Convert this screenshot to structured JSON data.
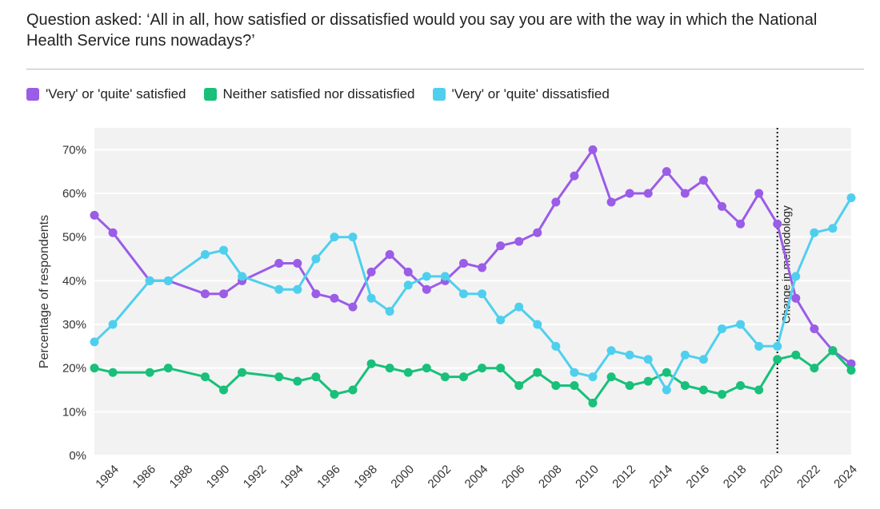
{
  "question": "Question asked: ‘All in all, how satisfied or dissatisfied would you say you are with the way in which the National Health Service runs nowadays?’",
  "chart_data": {
    "type": "line",
    "title": "Question asked: ‘All in all, how satisfied or dissatisfied would you say you are with the way in which the National Health Service runs nowadays?’",
    "xlabel": "",
    "ylabel": "Percentage of respondents",
    "xlim": [
      1983,
      2024
    ],
    "ylim": [
      0,
      75
    ],
    "yticks": [
      0,
      10,
      20,
      30,
      40,
      50,
      60,
      70
    ],
    "ytick_labels": [
      "0%",
      "10%",
      "20%",
      "30%",
      "40%",
      "50%",
      "60%",
      "70%"
    ],
    "xticks": [
      1984,
      1986,
      1988,
      1990,
      1992,
      1994,
      1996,
      1998,
      2000,
      2002,
      2004,
      2006,
      2008,
      2010,
      2012,
      2014,
      2016,
      2018,
      2020,
      2022,
      2024
    ],
    "xtick_labels": [
      "1984",
      "1986",
      "1988",
      "1990",
      "1992",
      "1994",
      "1996",
      "1998",
      "2000",
      "2002",
      "2004",
      "2006",
      "2008",
      "2010",
      "2012",
      "2014",
      "2016",
      "2018",
      "2020",
      "2022",
      "2024"
    ],
    "grid": true,
    "legend_position": "top-left",
    "annotations": [
      {
        "x": 2020,
        "text": "Change in methodology",
        "style": "dotted-vertical-line"
      }
    ],
    "series": [
      {
        "name": "'Very' or 'quite' satisfied",
        "color": "#9b5ce8",
        "x": [
          1983,
          1984,
          1986,
          1987,
          1989,
          1990,
          1991,
          1993,
          1994,
          1995,
          1996,
          1997,
          1998,
          1999,
          2000,
          2001,
          2002,
          2003,
          2004,
          2005,
          2006,
          2007,
          2008,
          2009,
          2010,
          2011,
          2012,
          2013,
          2014,
          2015,
          2016,
          2017,
          2018,
          2019,
          2020,
          2021,
          2022,
          2023,
          2024
        ],
        "values": [
          55,
          51,
          40,
          40,
          37,
          37,
          40,
          44,
          44,
          37,
          36,
          34,
          42,
          46,
          42,
          38,
          40,
          44,
          43,
          48,
          49,
          51,
          58,
          64,
          70,
          58,
          60,
          60,
          65,
          60,
          63,
          57,
          53,
          60,
          53,
          36,
          29,
          24,
          21
        ]
      },
      {
        "name": "Neither satisfied nor dissatisfied",
        "color": "#18c07a",
        "x": [
          1983,
          1984,
          1986,
          1987,
          1989,
          1990,
          1991,
          1993,
          1994,
          1995,
          1996,
          1997,
          1998,
          1999,
          2000,
          2001,
          2002,
          2003,
          2004,
          2005,
          2006,
          2007,
          2008,
          2009,
          2010,
          2011,
          2012,
          2013,
          2014,
          2015,
          2016,
          2017,
          2018,
          2019,
          2020,
          2021,
          2022,
          2023,
          2024
        ],
        "values": [
          20,
          19,
          19,
          20,
          18,
          15,
          19,
          18,
          17,
          18,
          14,
          15,
          21,
          20,
          19,
          20,
          18,
          18,
          20,
          20,
          16,
          19,
          16,
          16,
          12,
          18,
          16,
          17,
          19,
          16,
          15,
          14,
          16,
          15,
          22,
          23,
          20,
          24,
          19.5
        ]
      },
      {
        "name": "'Very' or 'quite' dissatisfied",
        "color": "#4fcfee",
        "x": [
          1983,
          1984,
          1986,
          1987,
          1989,
          1990,
          1991,
          1993,
          1994,
          1995,
          1996,
          1997,
          1998,
          1999,
          2000,
          2001,
          2002,
          2003,
          2004,
          2005,
          2006,
          2007,
          2008,
          2009,
          2010,
          2011,
          2012,
          2013,
          2014,
          2015,
          2016,
          2017,
          2018,
          2019,
          2020,
          2021,
          2022,
          2023,
          2024
        ],
        "values": [
          26,
          30,
          40,
          40,
          46,
          47,
          41,
          38,
          38,
          45,
          50,
          50,
          36,
          33,
          39,
          41,
          41,
          37,
          37,
          31,
          34,
          30,
          25,
          19,
          18,
          24,
          23,
          22,
          15,
          23,
          22,
          29,
          30,
          25,
          25,
          41,
          51,
          52,
          59
        ]
      }
    ]
  }
}
